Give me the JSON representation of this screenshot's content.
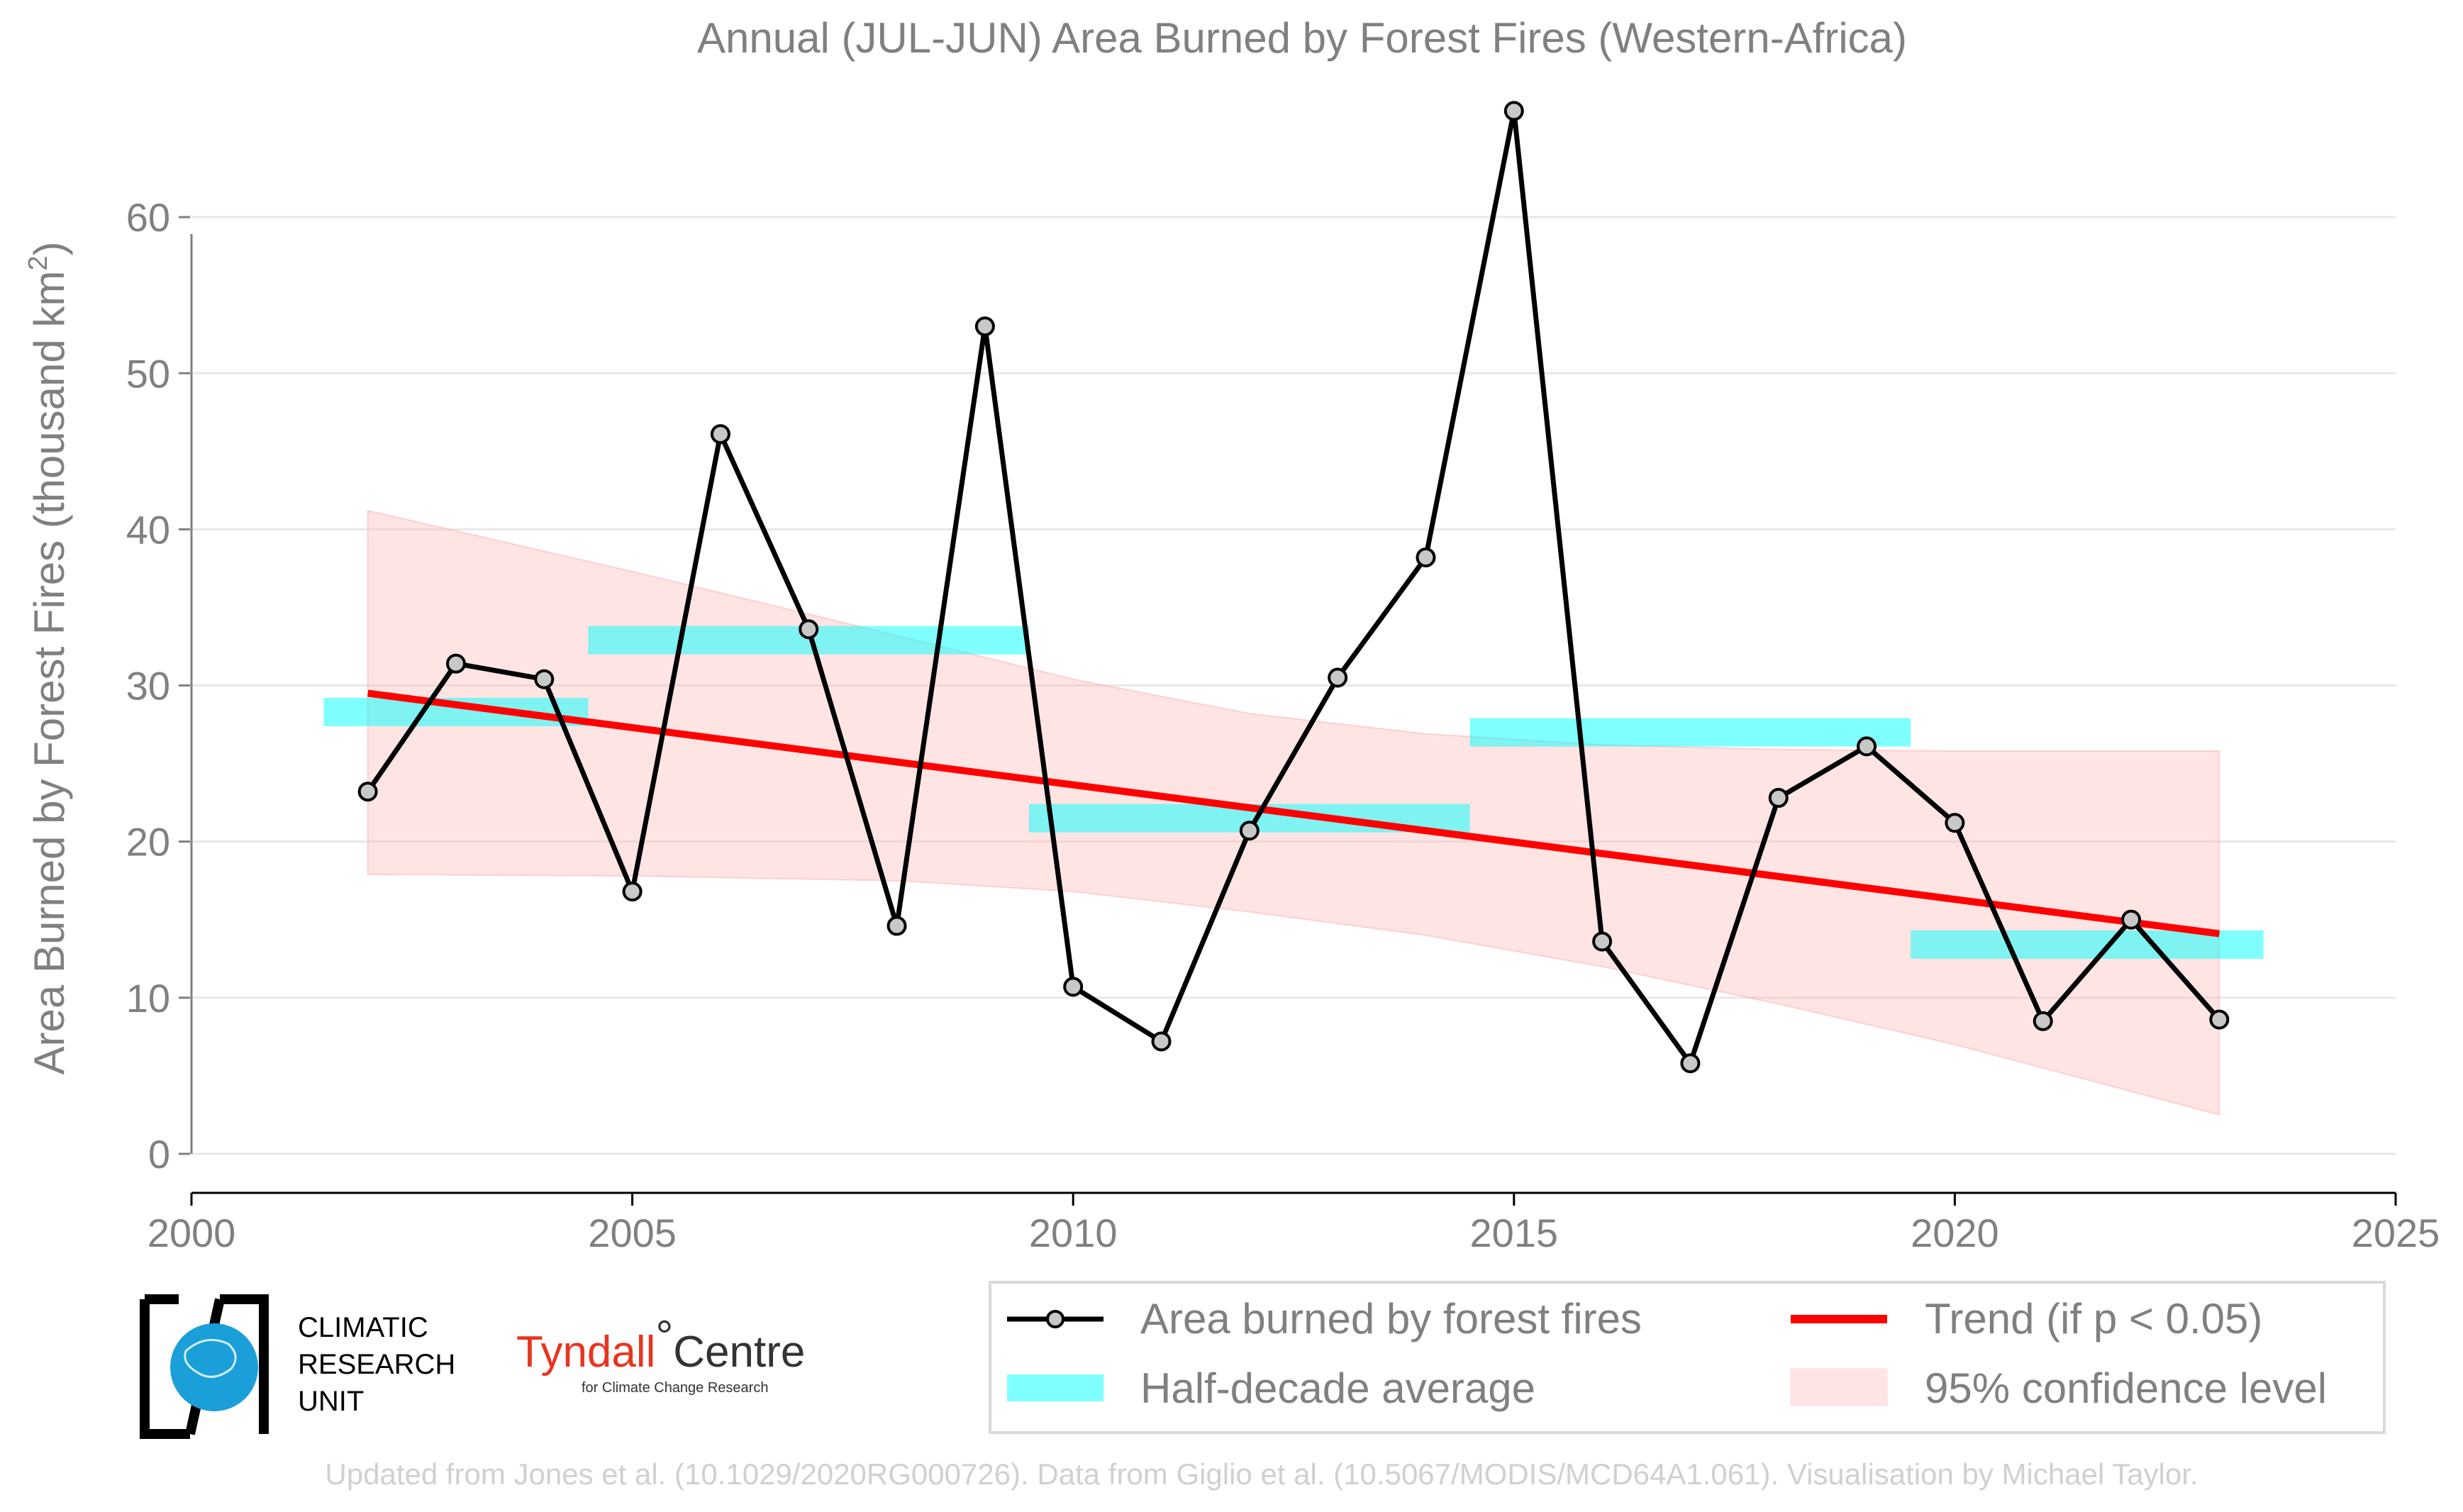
{
  "chart_data": {
    "type": "line",
    "title": "Annual (JUL-JUN) Area Burned by Forest Fires (Western-Africa)",
    "xlabel": "",
    "ylabel": "Area Burned by Forest Fires (thousand km²)",
    "ylabel_main": "Area Burned by Forest Fires (thousand km",
    "ylabel_sup": "2",
    "ylabel_close": ")",
    "xlim": [
      2000,
      2025
    ],
    "ylim": [
      -2.5,
      68
    ],
    "x_ticks": [
      2000,
      2005,
      2010,
      2015,
      2020,
      2025
    ],
    "y_ticks": [
      0,
      10,
      20,
      30,
      40,
      50,
      60
    ],
    "grid": "horizontal",
    "legend_position": "bottom-right",
    "series": [
      {
        "name": "Area burned by forest fires",
        "kind": "line-markers",
        "color": "#000000",
        "marker_fill": "#c8c8c8",
        "x": [
          2002,
          2003,
          2004,
          2005,
          2006,
          2007,
          2008,
          2009,
          2010,
          2011,
          2012,
          2013,
          2014,
          2015,
          2016,
          2017,
          2018,
          2019,
          2020,
          2021,
          2022,
          2023
        ],
        "y": [
          23.2,
          31.4,
          30.4,
          16.8,
          46.1,
          33.6,
          14.6,
          53.0,
          10.7,
          7.2,
          20.7,
          30.5,
          38.2,
          66.8,
          13.6,
          5.8,
          22.8,
          26.1,
          21.2,
          8.5,
          15.0,
          8.6
        ]
      },
      {
        "name": "Half-decade average",
        "kind": "segments",
        "color": "#00ffff",
        "opacity": 0.5,
        "segments": [
          {
            "x0": 2001.5,
            "x1": 2004.5,
            "y": 28.3
          },
          {
            "x0": 2004.5,
            "x1": 2009.5,
            "y": 32.9
          },
          {
            "x0": 2009.5,
            "x1": 2014.5,
            "y": 21.5
          },
          {
            "x0": 2014.5,
            "x1": 2019.5,
            "y": 27.0
          },
          {
            "x0": 2019.5,
            "x1": 2023.5,
            "y": 13.4
          }
        ]
      },
      {
        "name": "Trend (if p < 0.05)",
        "kind": "trend",
        "color": "#ff0000",
        "x": [
          2002,
          2023
        ],
        "y": [
          29.5,
          14.1
        ]
      },
      {
        "name": "95% confidence level",
        "kind": "band",
        "color": "#ffb3b3",
        "opacity": 0.35,
        "x": [
          2002,
          2005,
          2008,
          2010,
          2012,
          2014,
          2016,
          2018,
          2020,
          2023
        ],
        "upper": [
          41.2,
          37.3,
          33.2,
          30.4,
          28.2,
          26.9,
          26.2,
          25.9,
          25.8,
          25.8
        ],
        "lower": [
          17.9,
          17.8,
          17.5,
          16.8,
          15.5,
          14.0,
          12.0,
          9.6,
          7.0,
          2.5
        ]
      }
    ]
  },
  "legend": {
    "items": [
      {
        "label": "Area burned by forest fires",
        "symbol": "line-marker"
      },
      {
        "label": "Trend (if p < 0.05)",
        "symbol": "red-line"
      },
      {
        "label": "Half-decade average",
        "symbol": "cyan-bar"
      },
      {
        "label": "95% confidence level",
        "symbol": "pink-box"
      }
    ]
  },
  "logos": {
    "cru_line1": "CLIMATIC",
    "cru_line2": "RESEARCH",
    "cru_line3": "UNIT",
    "tyndall_main": "Tyndall",
    "tyndall_degree": "°",
    "tyndall_centre": "Centre",
    "tyndall_sub": "for Climate Change Research"
  },
  "credit": "Updated from Jones et al. (10.1029/2020RG000726). Data from Giglio et al. (10.5067/MODIS/MCD64A1.061). Visualisation by Michael Taylor.",
  "colors": {
    "text": "#808080",
    "grid": "#e8e8e8",
    "axis": "#000000",
    "trend": "#ff0000",
    "half_decade": "#00ffff",
    "band": "#ffb3b3",
    "credit": "#d0d0d0"
  }
}
